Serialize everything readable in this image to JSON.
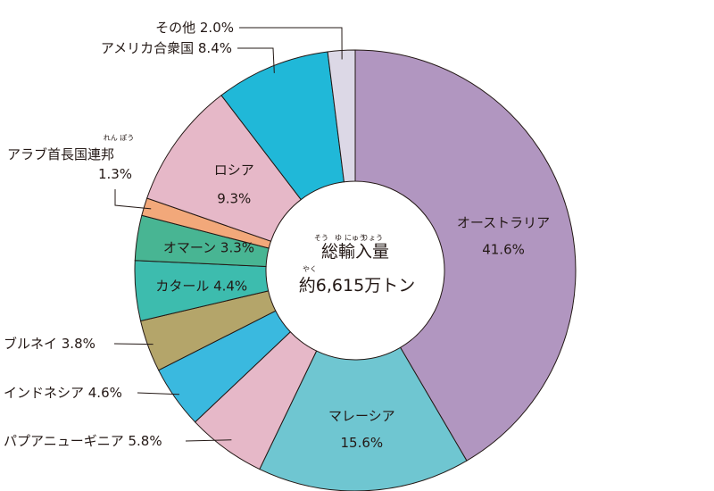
{
  "chart_data": {
    "type": "pie",
    "variant": "donut",
    "start": "12 o'clock",
    "direction": "clockwise",
    "center": {
      "title": "総輸入量",
      "title_ruby": [
        {
          "base": "総",
          "reading": "そう"
        },
        {
          "base": "輸",
          "reading": "ゆ"
        },
        {
          "base": "入",
          "reading": "にゅう"
        },
        {
          "base": "量",
          "reading": "りょう"
        }
      ],
      "value": "約6,615万トン",
      "value_ruby": {
        "base": "約",
        "reading": "やく"
      }
    },
    "slices": [
      {
        "name": "オーストラリア",
        "value": 41.6,
        "label": "41.6%",
        "color": "#b196c0"
      },
      {
        "name": "マレーシア",
        "value": 15.6,
        "label": "15.6%",
        "color": "#6fc6d1"
      },
      {
        "name": "パプアニューギニア",
        "value": 5.8,
        "label": "5.8%",
        "color": "#e6b8c8"
      },
      {
        "name": "インドネシア",
        "value": 4.6,
        "label": "4.6%",
        "color": "#3ab9df"
      },
      {
        "name": "ブルネイ",
        "value": 3.8,
        "label": "3.8%",
        "color": "#b4a56a"
      },
      {
        "name": "カタール",
        "value": 4.4,
        "label": "4.4%",
        "color": "#3dbcae"
      },
      {
        "name": "オマーン",
        "value": 3.3,
        "label": "3.3%",
        "color": "#48b593"
      },
      {
        "name": "アラブ首長国連邦",
        "value": 1.3,
        "label": "1.3%",
        "color": "#f2a87a",
        "ruby": {
          "base": "連邦",
          "reading": "れん ぽう"
        }
      },
      {
        "name": "ロシア",
        "value": 9.3,
        "label": "9.3%",
        "color": "#e6b8c8"
      },
      {
        "name": "アメリカ合衆国",
        "value": 8.4,
        "label": "8.4%",
        "color": "#20b8d8"
      },
      {
        "name": "その他",
        "value": 2.0,
        "label": "2.0%",
        "color": "#dcd8e6"
      }
    ]
  }
}
